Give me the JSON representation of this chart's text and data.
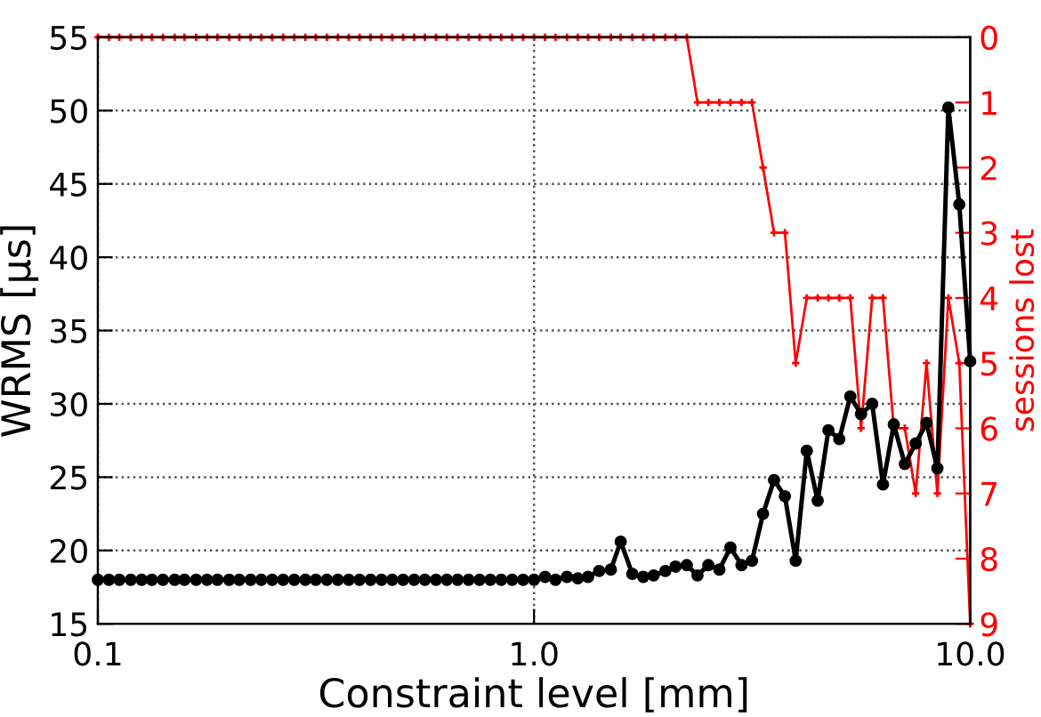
{
  "chart_data": {
    "type": "line",
    "xlabel": "Constraint level [mm]",
    "ylabel": "WRMS [μs]",
    "y2label": "sessions lost",
    "x": [
      0.1,
      0.106,
      0.112,
      0.119,
      0.126,
      0.133,
      0.141,
      0.15,
      0.158,
      0.168,
      0.178,
      0.188,
      0.2,
      0.211,
      0.224,
      0.237,
      0.251,
      0.266,
      0.282,
      0.299,
      0.316,
      0.335,
      0.355,
      0.376,
      0.398,
      0.422,
      0.447,
      0.473,
      0.501,
      0.531,
      0.562,
      0.596,
      0.631,
      0.668,
      0.708,
      0.75,
      0.794,
      0.841,
      0.891,
      0.944,
      1,
      1.06,
      1.12,
      1.19,
      1.26,
      1.33,
      1.41,
      1.5,
      1.58,
      1.68,
      1.78,
      1.88,
      2.0,
      2.11,
      2.24,
      2.37,
      2.51,
      2.66,
      2.82,
      2.99,
      3.16,
      3.35,
      3.55,
      3.76,
      3.98,
      4.22,
      4.47,
      4.73,
      5.01,
      5.31,
      5.62,
      5.96,
      6.31,
      6.68,
      7.08,
      7.5,
      7.94,
      8.41,
      8.91,
      9.44,
      10
    ],
    "series": [
      {
        "color": "#000000",
        "marker": "circle",
        "values": [
          18.0,
          18.0,
          18.0,
          18.0,
          18.0,
          18.0,
          18.0,
          18.0,
          18.0,
          18.0,
          18.0,
          18.0,
          18.0,
          18.0,
          18.0,
          18.0,
          18.0,
          18.0,
          18.0,
          18.0,
          18.0,
          18.0,
          18.0,
          18.0,
          18.0,
          18.0,
          18.0,
          18.0,
          18.0,
          18.0,
          18.0,
          18.0,
          18.0,
          18.0,
          18.0,
          18.0,
          18.0,
          18.0,
          18.0,
          18.0,
          18.0,
          18.2,
          18.0,
          18.2,
          18.1,
          18.2,
          18.6,
          18.7,
          20.6,
          18.4,
          18.2,
          18.3,
          18.6,
          18.9,
          19.0,
          18.3,
          19.0,
          18.7,
          20.2,
          19.0,
          19.3,
          22.5,
          24.8,
          23.7,
          19.3,
          26.8,
          23.4,
          28.2,
          27.6,
          30.5,
          29.3,
          30.0,
          24.5,
          28.6,
          25.9,
          27.3,
          28.7,
          25.6,
          50.2,
          43.6,
          32.9
        ]
      },
      {
        "color": "#ff0000",
        "marker": "cross",
        "axis": "y2",
        "values": [
          0,
          0,
          0,
          0,
          0,
          0,
          0,
          0,
          0,
          0,
          0,
          0,
          0,
          0,
          0,
          0,
          0,
          0,
          0,
          0,
          0,
          0,
          0,
          0,
          0,
          0,
          0,
          0,
          0,
          0,
          0,
          0,
          0,
          0,
          0,
          0,
          0,
          0,
          0,
          0,
          0,
          0,
          0,
          0,
          0,
          0,
          0,
          0,
          0,
          0,
          0,
          0,
          0,
          0,
          0,
          1,
          1,
          1,
          1,
          1,
          1,
          2,
          3,
          3,
          5,
          4,
          4,
          4,
          4,
          4,
          6,
          4,
          4,
          6,
          6,
          7,
          5,
          7,
          4,
          5,
          9
        ]
      }
    ],
    "log": "x",
    "xlim": [
      0.1,
      10
    ],
    "xticks": [
      {
        "value": 0.1,
        "label": "0.1"
      },
      {
        "value": 1,
        "label": "1.0"
      },
      {
        "value": 10,
        "label": "10.0"
      }
    ],
    "ylim": [
      15,
      55
    ],
    "yticks": [
      15,
      20,
      25,
      30,
      35,
      40,
      45,
      50,
      55
    ],
    "y2lim": [
      9,
      0
    ],
    "y2ticks": [
      0,
      1,
      2,
      3,
      4,
      5,
      6,
      7,
      8,
      9
    ],
    "grid": true,
    "line_style": "solid"
  }
}
